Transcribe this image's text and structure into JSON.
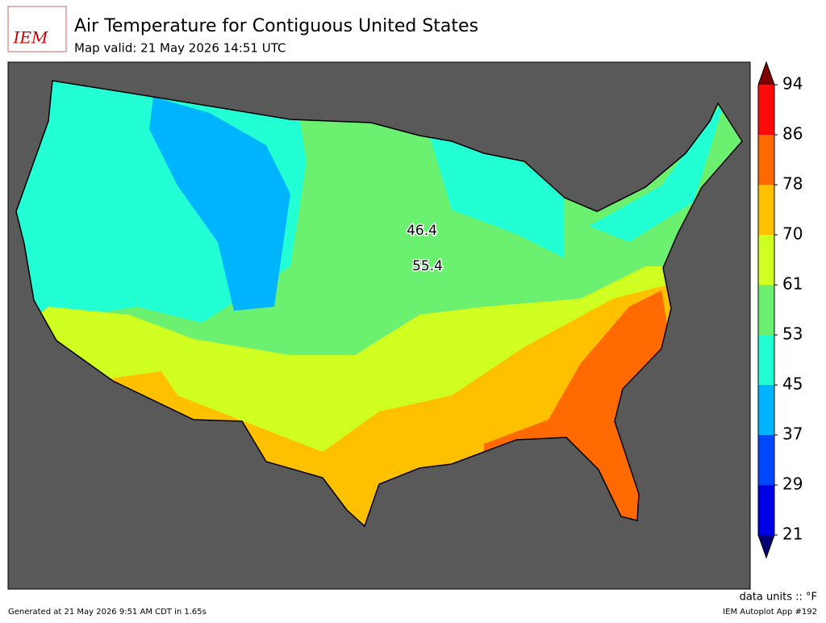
{
  "header": {
    "logo": "IEM",
    "title": "Air Temperature for Contiguous United States",
    "subtitle": "Map valid: 21 May 2026 14:51 UTC"
  },
  "colorbar": {
    "ticks": [
      21,
      29,
      37,
      45,
      53,
      61,
      70,
      78,
      86,
      94
    ],
    "colors": [
      "#0000e6",
      "#0048ff",
      "#00b4ff",
      "#22ffd4",
      "#6cf070",
      "#d0ff22",
      "#ffc000",
      "#ff6a00",
      "#ff0a0a"
    ],
    "under_color": "#000070",
    "over_color": "#800000"
  },
  "annotations": [
    {
      "text": "46.4"
    },
    {
      "text": "55.4"
    }
  ],
  "footer": {
    "generated": "Generated at 21 May 2026 9:51 AM CDT in 1.65s",
    "units": "data units :: °F",
    "app": "IEM Autoplot App #192"
  }
}
